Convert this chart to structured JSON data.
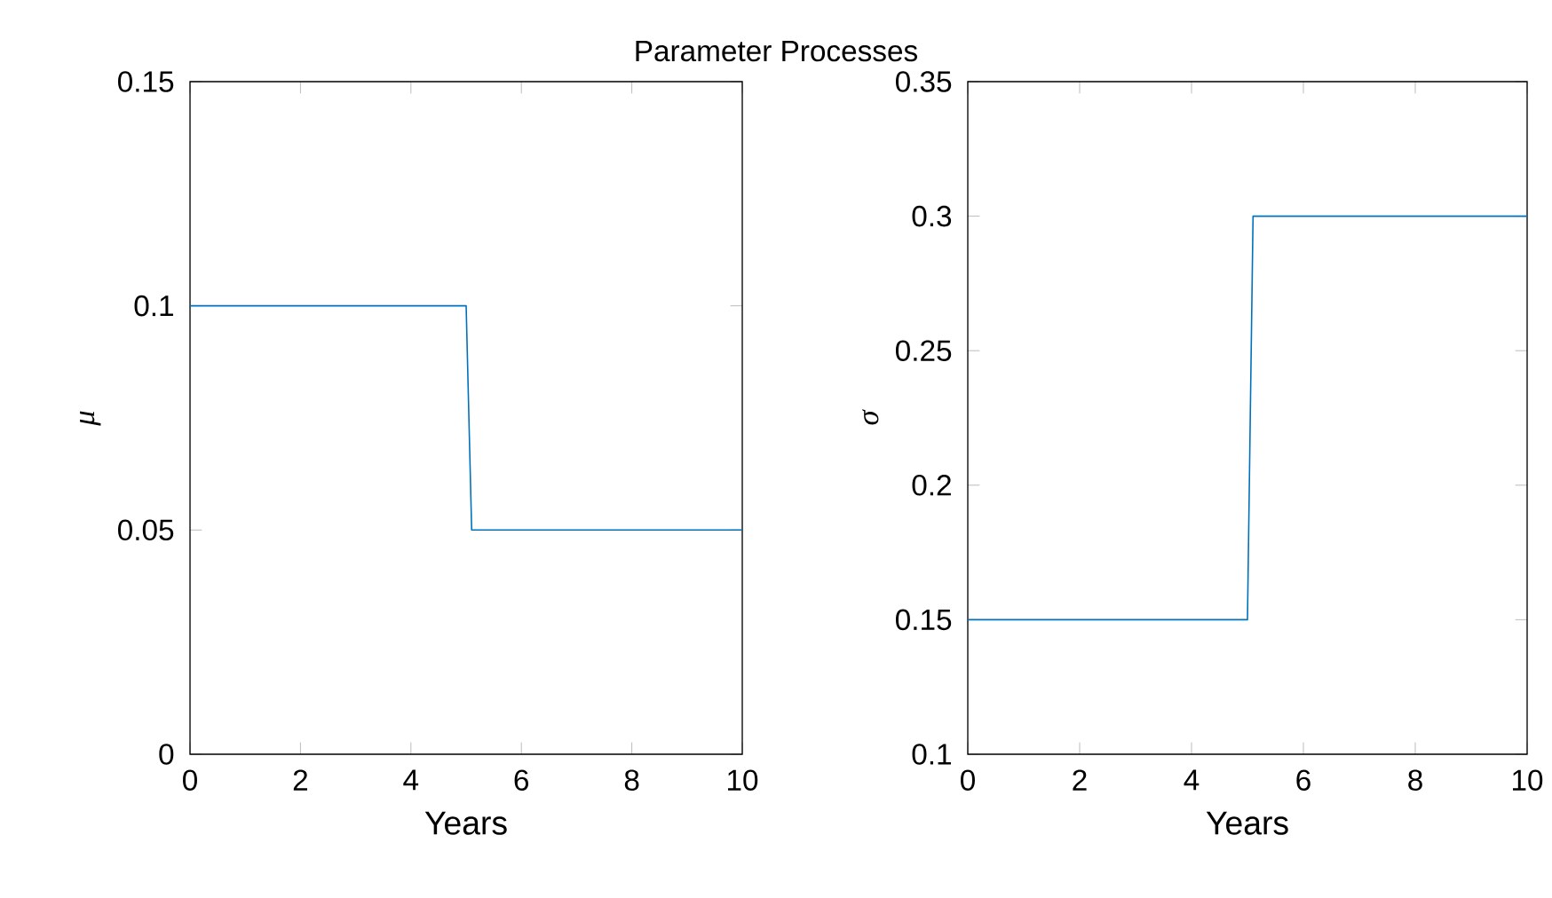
{
  "chart_data": [
    {
      "type": "line",
      "title": "Parameter Processes",
      "xlabel": "Years",
      "ylabel": "μ",
      "x": [
        0,
        5,
        5.1,
        10
      ],
      "series": [
        {
          "color": "#0072bd",
          "values": [
            0.1,
            0.1,
            0.05,
            0.05
          ]
        }
      ],
      "xlim": [
        0,
        10
      ],
      "xticks": [
        0,
        2,
        4,
        6,
        8,
        10
      ],
      "ylim": [
        0,
        0.15
      ],
      "yticks": [
        0,
        0.05,
        0.1,
        0.15
      ]
    },
    {
      "type": "line",
      "xlabel": "Years",
      "ylabel": "σ",
      "x": [
        0,
        5,
        5.1,
        10
      ],
      "series": [
        {
          "color": "#0072bd",
          "values": [
            0.15,
            0.15,
            0.3,
            0.3
          ]
        }
      ],
      "xlim": [
        0,
        10
      ],
      "xticks": [
        0,
        2,
        4,
        6,
        8,
        10
      ],
      "ylim": [
        0.1,
        0.35
      ],
      "yticks": [
        0.1,
        0.15,
        0.2,
        0.25,
        0.3,
        0.35
      ]
    }
  ]
}
